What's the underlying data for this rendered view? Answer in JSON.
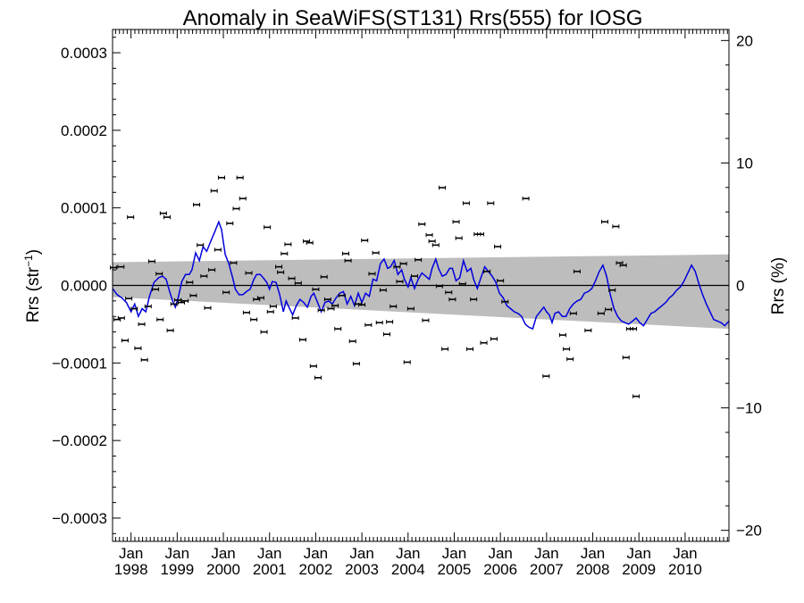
{
  "chart_data": {
    "type": "scatter",
    "title": "Anomaly in SeaWiFS(ST131) Rrs(555) for IOSG",
    "ylabel_left": "Rrs (str",
    "ylabel_left_sup": "−1",
    "ylabel_left_close": ")",
    "ylabel_right": "Rrs (%)",
    "xlim": [
      1997.6,
      2010.95
    ],
    "ylim_left": [
      -0.00033,
      0.00033
    ],
    "ylim_right": [
      -20.9,
      20.9
    ],
    "yticks_left": [
      {
        "value": 0.0003,
        "label": "0.0003"
      },
      {
        "value": 0.0002,
        "label": "0.0002"
      },
      {
        "value": 0.0001,
        "label": "0.0001"
      },
      {
        "value": 0.0,
        "label": "0.0000"
      },
      {
        "value": -0.0001,
        "label": "−0.0001"
      },
      {
        "value": -0.0002,
        "label": "−0.0002"
      },
      {
        "value": -0.0003,
        "label": "−0.0003"
      }
    ],
    "yticks_right": [
      {
        "value": 20,
        "label": "20"
      },
      {
        "value": 10,
        "label": "10"
      },
      {
        "value": 0,
        "label": "0"
      },
      {
        "value": -10,
        "label": "−10"
      },
      {
        "value": -20,
        "label": "−20"
      }
    ],
    "xticks": [
      {
        "value": 1998.0,
        "month": "Jan",
        "year": "1998"
      },
      {
        "value": 1999.0,
        "month": "Jan",
        "year": "1999"
      },
      {
        "value": 2000.0,
        "month": "Jan",
        "year": "2000"
      },
      {
        "value": 2001.0,
        "month": "Jan",
        "year": "2001"
      },
      {
        "value": 2002.0,
        "month": "Jan",
        "year": "2002"
      },
      {
        "value": 2003.0,
        "month": "Jan",
        "year": "2003"
      },
      {
        "value": 2004.0,
        "month": "Jan",
        "year": "2004"
      },
      {
        "value": 2005.0,
        "month": "Jan",
        "year": "2005"
      },
      {
        "value": 2006.0,
        "month": "Jan",
        "year": "2006"
      },
      {
        "value": 2007.0,
        "month": "Jan",
        "year": "2007"
      },
      {
        "value": 2008.0,
        "month": "Jan",
        "year": "2008"
      },
      {
        "value": 2009.0,
        "month": "Jan",
        "year": "2009"
      },
      {
        "value": 2010.0,
        "month": "Jan",
        "year": "2010"
      }
    ],
    "zero_line": 0.0,
    "band": {
      "x": [
        1997.6,
        2010.95
      ],
      "upper": [
        3e-05,
        4e-05
      ],
      "lower": [
        -1.5e-05,
        -5.6e-05
      ]
    },
    "points": [
      [
        1997.62,
        2.3e-05
      ],
      [
        1997.7,
        -4.4e-05
      ],
      [
        1997.78,
        2.4e-05
      ],
      [
        1997.79,
        -4.2e-05
      ],
      [
        1997.87,
        -7.1e-05
      ],
      [
        1997.95,
        -1.7e-05
      ],
      [
        1997.99,
        8.8e-05
      ],
      [
        1998.07,
        -3e-05
      ],
      [
        1998.15,
        -8.1e-05
      ],
      [
        1998.23,
        -5e-05
      ],
      [
        1998.29,
        -9.6e-05
      ],
      [
        1998.37,
        -2.7e-05
      ],
      [
        1998.45,
        3.1e-05
      ],
      [
        1998.53,
        -5e-06
      ],
      [
        1998.61,
        1.5e-05
      ],
      [
        1998.63,
        -4.4e-05
      ],
      [
        1998.7,
        9.3e-05
      ],
      [
        1998.78,
        8.8e-05
      ],
      [
        1998.85,
        -5.8e-05
      ],
      [
        1998.93,
        -2.4e-05
      ],
      [
        1999.01,
        -1.9e-05
      ],
      [
        1999.09,
        -2.2e-05
      ],
      [
        1999.17,
        -2e-05
      ],
      [
        1999.27,
        4e-06
      ],
      [
        1999.35,
        -1.3e-05
      ],
      [
        1999.42,
        0.000104
      ],
      [
        1999.5,
        5.2e-05
      ],
      [
        1999.58,
        1.2e-05
      ],
      [
        1999.66,
        -2.9e-05
      ],
      [
        1999.75,
        2e-05
      ],
      [
        1999.8,
        0.000122
      ],
      [
        1999.88,
        4.6e-05
      ],
      [
        1999.96,
        0.000139
      ],
      [
        2000.06,
        -9e-06
      ],
      [
        2000.14,
        8e-05
      ],
      [
        2000.22,
        2.9e-05
      ],
      [
        2000.28,
        9.9e-05
      ],
      [
        2000.36,
        0.000139
      ],
      [
        2000.42,
        0.000112
      ],
      [
        2000.5,
        -3.5e-05
      ],
      [
        2000.55,
        1.6e-05
      ],
      [
        2000.66,
        -4.4e-05
      ],
      [
        2000.72,
        -1.8e-05
      ],
      [
        2000.81,
        -1.6e-05
      ],
      [
        2000.88,
        -6e-05
      ],
      [
        2000.95,
        7.5e-05
      ],
      [
        2001.02,
        -3.4e-05
      ],
      [
        2001.08,
        -2.7e-05
      ],
      [
        2001.2,
        2.4e-05
      ],
      [
        2001.24,
        1.7e-05
      ],
      [
        2001.32,
        4.1e-05
      ],
      [
        2001.4,
        5.3e-05
      ],
      [
        2001.48,
        9e-06
      ],
      [
        2001.56,
        -4.2e-05
      ],
      [
        2001.62,
        3e-06
      ],
      [
        2001.72,
        -7e-05
      ],
      [
        2001.8,
        5.7e-05
      ],
      [
        2001.87,
        5.5e-05
      ],
      [
        2001.95,
        -0.000104
      ],
      [
        2002.0,
        -5e-06
      ],
      [
        2002.05,
        -0.000119
      ],
      [
        2002.12,
        -3.2e-05
      ],
      [
        2002.18,
        1.1e-05
      ],
      [
        2002.26,
        -1.8e-05
      ],
      [
        2002.33,
        -3e-05
      ],
      [
        2002.42,
        -2.6e-05
      ],
      [
        2002.48,
        -5.6e-05
      ],
      [
        2002.57,
        -1.3e-05
      ],
      [
        2002.65,
        4.1e-05
      ],
      [
        2002.7,
        3.2e-05
      ],
      [
        2002.8,
        -7.2e-05
      ],
      [
        2002.88,
        -0.000101
      ],
      [
        2002.92,
        -2.4e-05
      ],
      [
        2003.0,
        -2.5e-05
      ],
      [
        2003.06,
        5.8e-05
      ],
      [
        2003.14,
        -5.1e-05
      ],
      [
        2003.22,
        1.5e-05
      ],
      [
        2003.3,
        4.2e-05
      ],
      [
        2003.38,
        -4.8e-05
      ],
      [
        2003.46,
        -6e-06
      ],
      [
        2003.54,
        -6.3e-05
      ],
      [
        2003.6,
        -4.7e-05
      ],
      [
        2003.68,
        -2.7e-05
      ],
      [
        2003.76,
        2.4e-05
      ],
      [
        2003.82,
        5e-06
      ],
      [
        2003.9,
        2.8e-05
      ],
      [
        2003.98,
        -9.9e-05
      ],
      [
        2004.06,
        -3e-05
      ],
      [
        2004.14,
        1.2e-05
      ],
      [
        2004.22,
        3.3e-05
      ],
      [
        2004.3,
        7.9e-05
      ],
      [
        2004.38,
        -4.5e-05
      ],
      [
        2004.46,
        6.5e-05
      ],
      [
        2004.52,
        5.7e-05
      ],
      [
        2004.6,
        5.2e-05
      ],
      [
        2004.68,
        -1e-06
      ],
      [
        2004.74,
        0.000126
      ],
      [
        2004.8,
        -8.2e-05
      ],
      [
        2004.88,
        -9e-06
      ],
      [
        2004.96,
        -1.8e-05
      ],
      [
        2005.04,
        8.2e-05
      ],
      [
        2005.1,
        6.1e-05
      ],
      [
        2005.18,
        2e-06
      ],
      [
        2005.26,
        0.000106
      ],
      [
        2005.34,
        -8.2e-05
      ],
      [
        2005.42,
        -1.8e-05
      ],
      [
        2005.5,
        6.6e-05
      ],
      [
        2005.57,
        6.6e-05
      ],
      [
        2005.64,
        -7.4e-05
      ],
      [
        2005.71,
        1.8e-05
      ],
      [
        2005.79,
        0.000106
      ],
      [
        2005.86,
        -6.9e-05
      ],
      [
        2005.94,
        5e-05
      ],
      [
        2006.0,
        6e-06
      ],
      [
        2006.1,
        -2.1e-05
      ],
      [
        2006.55,
        0.000112
      ],
      [
        2006.99,
        -0.000117
      ],
      [
        2007.35,
        -6.4e-05
      ],
      [
        2007.43,
        -8.2e-05
      ],
      [
        2007.51,
        -9.5e-05
      ],
      [
        2007.58,
        -3.6e-05
      ],
      [
        2007.66,
        1.8e-05
      ],
      [
        2007.9,
        -5.8e-05
      ],
      [
        2008.18,
        -3.6e-05
      ],
      [
        2008.26,
        8.2e-05
      ],
      [
        2008.34,
        -3.1e-05
      ],
      [
        2008.42,
        -6e-06
      ],
      [
        2008.5,
        7.6e-05
      ],
      [
        2008.58,
        2.9e-05
      ],
      [
        2008.66,
        2.6e-05
      ],
      [
        2008.72,
        -9.3e-05
      ],
      [
        2008.8,
        -5.6e-05
      ],
      [
        2008.88,
        -5.6e-05
      ],
      [
        2008.94,
        -0.000143
      ]
    ],
    "blue_line": [
      [
        1997.6,
        -4e-06
      ],
      [
        1997.7,
        -1.2e-05
      ],
      [
        1997.8,
        -1.6e-05
      ],
      [
        1997.9,
        -2.2e-05
      ],
      [
        1998.0,
        -3.4e-05
      ],
      [
        1998.08,
        -2.4e-05
      ],
      [
        1998.16,
        -4e-05
      ],
      [
        1998.24,
        -3e-05
      ],
      [
        1998.32,
        -3.4e-05
      ],
      [
        1998.4,
        -1.4e-05
      ],
      [
        1998.5,
        4e-06
      ],
      [
        1998.6,
        1e-05
      ],
      [
        1998.68,
        1.2e-05
      ],
      [
        1998.76,
        8e-06
      ],
      [
        1998.82,
        -5e-06
      ],
      [
        1998.9,
        -2e-05
      ],
      [
        1998.96,
        -2.8e-05
      ],
      [
        1999.02,
        -1.6e-05
      ],
      [
        1999.1,
        5e-06
      ],
      [
        1999.18,
        1.4e-05
      ],
      [
        1999.26,
        1.4e-05
      ],
      [
        1999.32,
        2e-05
      ],
      [
        1999.4,
        4.2e-05
      ],
      [
        1999.48,
        3.2e-05
      ],
      [
        1999.56,
        5e-05
      ],
      [
        1999.64,
        4.4e-05
      ],
      [
        1999.72,
        5.6e-05
      ],
      [
        1999.82,
        7e-05
      ],
      [
        1999.9,
        8.2e-05
      ],
      [
        1999.96,
        7.2e-05
      ],
      [
        2000.04,
        4e-05
      ],
      [
        2000.12,
        2.8e-05
      ],
      [
        2000.2,
        1e-05
      ],
      [
        2000.26,
        -5e-06
      ],
      [
        2000.34,
        -1.2e-05
      ],
      [
        2000.42,
        -1.2e-05
      ],
      [
        2000.5,
        -8e-06
      ],
      [
        2000.58,
        -5e-06
      ],
      [
        2000.66,
        8e-06
      ],
      [
        2000.72,
        1.4e-05
      ],
      [
        2000.8,
        1.4e-05
      ],
      [
        2000.86,
        1e-05
      ],
      [
        2000.94,
        4e-06
      ],
      [
        2001.0,
        -5e-06
      ],
      [
        2001.06,
        5e-06
      ],
      [
        2001.14,
        4e-06
      ],
      [
        2001.22,
        -1.2e-05
      ],
      [
        2001.3,
        -3.4e-05
      ],
      [
        2001.36,
        -2e-05
      ],
      [
        2001.42,
        -2.8e-05
      ],
      [
        2001.5,
        -3.8e-05
      ],
      [
        2001.58,
        -2.6e-05
      ],
      [
        2001.66,
        -1.8e-05
      ],
      [
        2001.74,
        -2.2e-05
      ],
      [
        2001.82,
        -2.8e-05
      ],
      [
        2001.9,
        -1.4e-05
      ],
      [
        2001.96,
        -1e-05
      ],
      [
        2002.04,
        -2.2e-05
      ],
      [
        2002.12,
        -3.4e-05
      ],
      [
        2002.2,
        -2.2e-05
      ],
      [
        2002.28,
        -2e-05
      ],
      [
        2002.36,
        -2.4e-05
      ],
      [
        2002.44,
        -1.6e-05
      ],
      [
        2002.52,
        -1e-05
      ],
      [
        2002.6,
        -8e-06
      ],
      [
        2002.68,
        -2.4e-05
      ],
      [
        2002.76,
        -1.4e-05
      ],
      [
        2002.84,
        -2.6e-05
      ],
      [
        2002.92,
        -1e-05
      ],
      [
        2003.0,
        -2.2e-05
      ],
      [
        2003.08,
        -1e-05
      ],
      [
        2003.16,
        -1.4e-05
      ],
      [
        2003.24,
        8e-06
      ],
      [
        2003.32,
        6e-06
      ],
      [
        2003.4,
        2.8e-05
      ],
      [
        2003.48,
        3.4e-05
      ],
      [
        2003.56,
        2.2e-05
      ],
      [
        2003.62,
        2.4e-05
      ],
      [
        2003.7,
        3.2e-05
      ],
      [
        2003.78,
        1.4e-05
      ],
      [
        2003.86,
        2e-05
      ],
      [
        2003.92,
        8e-06
      ],
      [
        2004.0,
        -2e-06
      ],
      [
        2004.06,
        1e-05
      ],
      [
        2004.14,
        -4e-06
      ],
      [
        2004.22,
        8e-06
      ],
      [
        2004.3,
        1.6e-05
      ],
      [
        2004.38,
        1.2e-05
      ],
      [
        2004.46,
        8e-06
      ],
      [
        2004.52,
        2.2e-05
      ],
      [
        2004.6,
        3.4e-05
      ],
      [
        2004.66,
        2.2e-05
      ],
      [
        2004.74,
        1.2e-05
      ],
      [
        2004.82,
        1.4e-05
      ],
      [
        2004.9,
        2.2e-05
      ],
      [
        2004.96,
        2.2e-05
      ],
      [
        2005.04,
        6e-06
      ],
      [
        2005.12,
        1e-05
      ],
      [
        2005.2,
        3.2e-05
      ],
      [
        2005.28,
        1.8e-05
      ],
      [
        2005.36,
        2.2e-05
      ],
      [
        2005.42,
        8e-06
      ],
      [
        2005.5,
        -4e-06
      ],
      [
        2005.58,
        1e-05
      ],
      [
        2005.66,
        2.4e-05
      ],
      [
        2005.74,
        1.8e-05
      ],
      [
        2005.82,
        1.2e-05
      ],
      [
        2005.9,
        4e-06
      ],
      [
        2005.98,
        -1e-05
      ],
      [
        2006.06,
        -1.6e-05
      ],
      [
        2006.14,
        -2.6e-05
      ],
      [
        2006.22,
        -3e-05
      ],
      [
        2006.3,
        -3.4e-05
      ],
      [
        2006.38,
        -3.6e-05
      ],
      [
        2006.46,
        -4e-05
      ],
      [
        2006.54,
        -5e-05
      ],
      [
        2006.62,
        -5.4e-05
      ],
      [
        2006.7,
        -5.6e-05
      ],
      [
        2006.78,
        -4e-05
      ],
      [
        2006.86,
        -3.4e-05
      ],
      [
        2006.94,
        -2.8e-05
      ],
      [
        2007.0,
        -3.4e-05
      ],
      [
        2007.06,
        -3.8e-05
      ],
      [
        2007.12,
        -4.8e-05
      ],
      [
        2007.18,
        -3.6e-05
      ],
      [
        2007.26,
        -3.4e-05
      ],
      [
        2007.34,
        -4e-05
      ],
      [
        2007.42,
        -4e-05
      ],
      [
        2007.5,
        -3e-05
      ],
      [
        2007.58,
        -2.4e-05
      ],
      [
        2007.66,
        -2e-05
      ],
      [
        2007.74,
        -1.8e-05
      ],
      [
        2007.82,
        -1e-05
      ],
      [
        2007.9,
        -8e-06
      ],
      [
        2007.98,
        -4e-06
      ],
      [
        2008.06,
        6e-06
      ],
      [
        2008.14,
        1.8e-05
      ],
      [
        2008.22,
        2.6e-05
      ],
      [
        2008.3,
        1.2e-05
      ],
      [
        2008.38,
        -1.2e-05
      ],
      [
        2008.46,
        -3e-05
      ],
      [
        2008.54,
        -4e-05
      ],
      [
        2008.62,
        -4.6e-05
      ],
      [
        2008.7,
        -4.8e-05
      ],
      [
        2008.78,
        -5e-05
      ],
      [
        2008.86,
        -4.6e-05
      ],
      [
        2008.94,
        -4.2e-05
      ],
      [
        2009.02,
        -4.8e-05
      ],
      [
        2009.1,
        -5.2e-05
      ],
      [
        2009.18,
        -4.4e-05
      ],
      [
        2009.26,
        -3.6e-05
      ],
      [
        2009.34,
        -3.4e-05
      ],
      [
        2009.42,
        -3e-05
      ],
      [
        2009.5,
        -2.6e-05
      ],
      [
        2009.58,
        -2.2e-05
      ],
      [
        2009.66,
        -1.6e-05
      ],
      [
        2009.74,
        -1.2e-05
      ],
      [
        2009.82,
        -6e-06
      ],
      [
        2009.9,
        -2e-06
      ],
      [
        2009.98,
        6e-06
      ],
      [
        2010.06,
        1.6e-05
      ],
      [
        2010.14,
        2.6e-05
      ],
      [
        2010.22,
        1.8e-05
      ],
      [
        2010.3,
        2e-06
      ],
      [
        2010.38,
        -1.2e-05
      ],
      [
        2010.46,
        -2.4e-05
      ],
      [
        2010.54,
        -3.4e-05
      ],
      [
        2010.62,
        -4.4e-05
      ],
      [
        2010.7,
        -4.6e-05
      ],
      [
        2010.78,
        -4.8e-05
      ],
      [
        2010.86,
        -5.2e-05
      ],
      [
        2010.95,
        -4.6e-05
      ]
    ],
    "colors": {
      "line": "#0000dd",
      "band": "#bdbdbd",
      "points": "#000000",
      "axes": "#000000"
    },
    "grid": false
  }
}
